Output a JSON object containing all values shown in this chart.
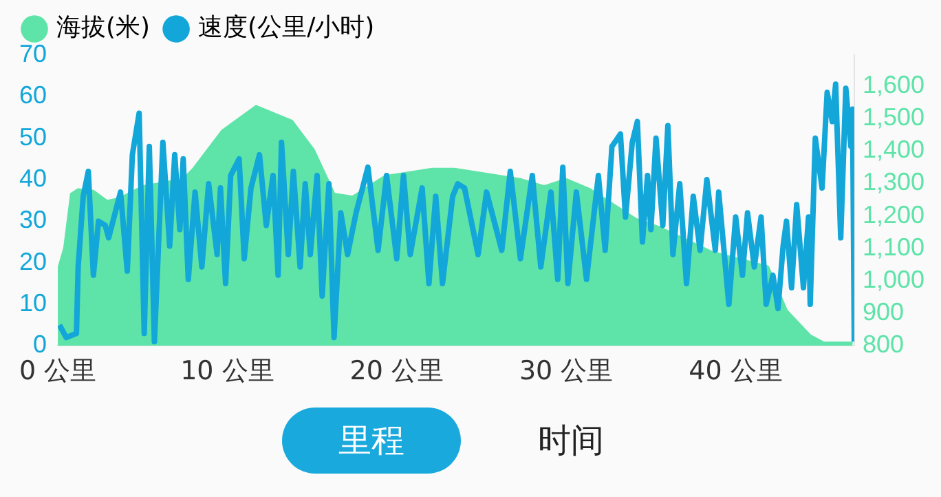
{
  "chart_data": {
    "type": "line",
    "legend": "top left",
    "grid": false,
    "marker": "none",
    "line_style": "solid",
    "xlim": [
      0,
      47
    ],
    "xticks": [
      {
        "value": 0,
        "label": "0 公里"
      },
      {
        "value": 10,
        "label": "10 公里"
      },
      {
        "value": 20,
        "label": "20 公里"
      },
      {
        "value": 30,
        "label": "30 公里"
      },
      {
        "value": 40,
        "label": "40 公里"
      }
    ],
    "ylim": [
      0,
      70
    ],
    "yticks": [
      0,
      10,
      20,
      30,
      40,
      50,
      60,
      70
    ],
    "y2lim": [
      800,
      1695
    ],
    "y2ticks": [
      {
        "value": 800,
        "label": "800"
      },
      {
        "value": 900,
        "label": "900"
      },
      {
        "value": 1000,
        "label": "1,000"
      },
      {
        "value": 1100,
        "label": "1,100"
      },
      {
        "value": 1200,
        "label": "1,200"
      },
      {
        "value": 1300,
        "label": "1,300"
      },
      {
        "value": 1400,
        "label": "1,400"
      },
      {
        "value": 1500,
        "label": "1,500"
      },
      {
        "value": 1600,
        "label": "1,600"
      }
    ],
    "series": [
      {
        "name": "海拔(米)",
        "type": "area",
        "axis": "y2",
        "color": "#5ee3a8",
        "x": [
          0,
          0.4,
          0.8,
          1.2,
          2.1,
          2.9,
          3.7,
          5.0,
          7.4,
          8.0,
          9.7,
          11.7,
          13.8,
          15.1,
          16.3,
          17.4,
          19.3,
          22.1,
          23.4,
          27.3,
          28.7,
          30.0,
          31.4,
          34.1,
          35.5,
          38.6,
          41.9,
          43.0,
          44.4,
          45.2,
          46.9
        ],
        "values": [
          1029,
          1101,
          1267,
          1281,
          1276,
          1245,
          1254,
          1290,
          1312,
          1344,
          1461,
          1537,
          1492,
          1402,
          1267,
          1258,
          1321,
          1344,
          1344,
          1312,
          1290,
          1312,
          1281,
          1190,
          1164,
          1088,
          1043,
          908,
          831,
          809,
          809
        ]
      },
      {
        "name": "速度(公里/小时)",
        "type": "line",
        "axis": "y",
        "color": "#12a6d9",
        "x": [
          0.1,
          0.5,
          1.1,
          1.2,
          1.5,
          1.8,
          2.1,
          2.4,
          2.8,
          3.0,
          3.7,
          4.1,
          4.4,
          4.8,
          5.1,
          5.4,
          5.7,
          6.2,
          6.6,
          6.9,
          7.2,
          7.4,
          7.7,
          8.1,
          8.5,
          8.9,
          9.4,
          9.6,
          9.9,
          10.2,
          10.7,
          11.0,
          11.4,
          11.9,
          12.3,
          12.7,
          13.0,
          13.2,
          13.6,
          13.9,
          14.3,
          14.6,
          14.9,
          15.3,
          15.6,
          16.0,
          16.3,
          16.7,
          17.1,
          17.6,
          18.3,
          18.9,
          19.4,
          20.0,
          20.4,
          20.8,
          21.5,
          21.9,
          22.3,
          22.7,
          23.3,
          23.6,
          24.0,
          24.8,
          25.3,
          26.2,
          26.7,
          27.3,
          28.0,
          28.5,
          29.1,
          29.5,
          29.8,
          30.1,
          30.6,
          31.2,
          31.9,
          32.3,
          32.7,
          33.2,
          33.5,
          33.9,
          34.2,
          34.5,
          34.8,
          35.0,
          35.3,
          35.7,
          36.0,
          36.3,
          36.7,
          37.1,
          37.5,
          37.9,
          38.3,
          38.8,
          39.0,
          39.6,
          40.0,
          40.4,
          40.7,
          41.1,
          41.5,
          41.8,
          42.2,
          42.5,
          42.8,
          43.0,
          43.3,
          43.6,
          44.0,
          44.3,
          44.4,
          44.7,
          45.1,
          45.4,
          45.7,
          45.9,
          46.2,
          46.5,
          46.8,
          46.9,
          47.0
        ],
        "values": [
          5,
          2,
          3,
          19,
          36,
          42,
          17,
          30,
          29,
          26,
          37,
          18,
          46,
          56,
          3,
          48,
          1,
          49,
          24,
          46,
          28,
          45,
          16,
          37,
          19,
          39,
          22,
          38,
          15,
          41,
          45,
          21,
          38,
          46,
          29,
          41,
          17,
          49,
          22,
          42,
          19,
          39,
          22,
          41,
          12,
          39,
          2,
          32,
          22,
          32,
          43,
          23,
          41,
          21,
          41,
          22,
          38,
          15,
          36,
          15,
          36,
          39,
          38,
          22,
          37,
          23,
          42,
          21,
          41,
          19,
          37,
          16,
          43,
          15,
          37,
          16,
          41,
          23,
          48,
          51,
          31,
          49,
          54,
          25,
          41,
          28,
          50,
          29,
          53,
          22,
          39,
          15,
          36,
          23,
          40,
          23,
          37,
          10,
          31,
          17,
          32,
          19,
          31,
          10,
          17,
          9,
          24,
          30,
          14,
          34,
          14,
          31,
          10,
          50,
          38,
          61,
          54,
          63,
          26,
          62,
          48,
          57,
          1
        ]
      }
    ],
    "annotations": [
      "里程",
      "时间"
    ]
  }
}
